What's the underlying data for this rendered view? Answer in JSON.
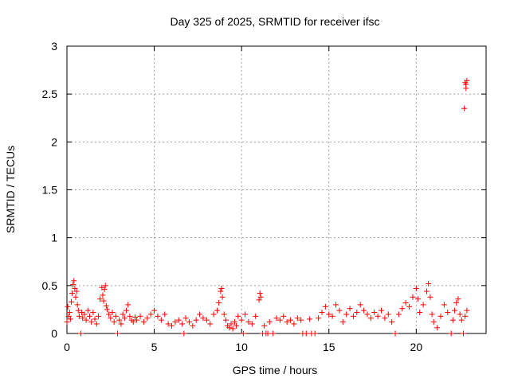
{
  "chart_data": {
    "type": "scatter",
    "title": "Day 325 of 2025, SRMTID for receiver ifsc",
    "xlabel": "GPS time / hours",
    "ylabel": "SRMTID / TECUs",
    "xlim": [
      0,
      24
    ],
    "ylim": [
      0,
      3
    ],
    "x_ticks": [
      0,
      5,
      10,
      15,
      20
    ],
    "y_ticks": [
      0,
      0.5,
      1,
      1.5,
      2,
      2.5,
      3
    ],
    "x_tick_labels": [
      "0",
      "5",
      "10",
      "15",
      "20"
    ],
    "y_tick_labels": [
      "0",
      "0.5",
      "1",
      "1.5",
      "2",
      "2.5",
      "3"
    ],
    "grid": true,
    "legend": "none",
    "marker": "+",
    "series": [
      {
        "color": "#ff0000",
        "points": [
          [
            0.0,
            0.12
          ],
          [
            0.05,
            0.28
          ],
          [
            0.1,
            0.18
          ],
          [
            0.15,
            0.22
          ],
          [
            0.2,
            0.15
          ],
          [
            0.25,
            0.33
          ],
          [
            0.3,
            0.42
          ],
          [
            0.35,
            0.51
          ],
          [
            0.4,
            0.55
          ],
          [
            0.45,
            0.47
          ],
          [
            0.5,
            0.38
          ],
          [
            0.55,
            0.44
          ],
          [
            0.6,
            0.3
          ],
          [
            0.65,
            0.24
          ],
          [
            0.7,
            0.18
          ],
          [
            0.8,
            0.0
          ],
          [
            0.85,
            0.22
          ],
          [
            0.9,
            0.16
          ],
          [
            1.0,
            0.2
          ],
          [
            1.1,
            0.14
          ],
          [
            1.2,
            0.24
          ],
          [
            1.3,
            0.18
          ],
          [
            1.4,
            0.12
          ],
          [
            1.5,
            0.22
          ],
          [
            1.6,
            0.15
          ],
          [
            1.7,
            0.1
          ],
          [
            1.8,
            0.18
          ],
          [
            1.9,
            0.36
          ],
          [
            2.0,
            0.48
          ],
          [
            2.05,
            0.4
          ],
          [
            2.1,
            0.34
          ],
          [
            2.15,
            0.46
          ],
          [
            2.2,
            0.5
          ],
          [
            2.25,
            0.29
          ],
          [
            2.3,
            0.25
          ],
          [
            2.4,
            0.2
          ],
          [
            2.5,
            0.16
          ],
          [
            2.6,
            0.22
          ],
          [
            2.7,
            0.12
          ],
          [
            2.8,
            0.18
          ],
          [
            2.9,
            0.0
          ],
          [
            3.0,
            0.14
          ],
          [
            3.1,
            0.1
          ],
          [
            3.2,
            0.2
          ],
          [
            3.3,
            0.16
          ],
          [
            3.4,
            0.24
          ],
          [
            3.5,
            0.3
          ],
          [
            3.6,
            0.18
          ],
          [
            3.7,
            0.14
          ],
          [
            3.8,
            0.12
          ],
          [
            3.9,
            0.17
          ],
          [
            4.0,
            0.14
          ],
          [
            4.2,
            0.18
          ],
          [
            4.4,
            0.12
          ],
          [
            4.6,
            0.16
          ],
          [
            4.8,
            0.2
          ],
          [
            5.0,
            0.24
          ],
          [
            5.2,
            0.18
          ],
          [
            5.4,
            0.14
          ],
          [
            5.6,
            0.2
          ],
          [
            5.8,
            0.1
          ],
          [
            6.0,
            0.08
          ],
          [
            6.2,
            0.12
          ],
          [
            6.4,
            0.14
          ],
          [
            6.6,
            0.1
          ],
          [
            6.7,
            0.0
          ],
          [
            6.8,
            0.16
          ],
          [
            7.0,
            0.12
          ],
          [
            7.2,
            0.08
          ],
          [
            7.4,
            0.14
          ],
          [
            7.6,
            0.2
          ],
          [
            7.8,
            0.16
          ],
          [
            8.0,
            0.14
          ],
          [
            8.2,
            0.1
          ],
          [
            8.4,
            0.2
          ],
          [
            8.6,
            0.24
          ],
          [
            8.7,
            0.32
          ],
          [
            8.8,
            0.44
          ],
          [
            8.85,
            0.47
          ],
          [
            8.9,
            0.38
          ],
          [
            9.0,
            0.2
          ],
          [
            9.1,
            0.14
          ],
          [
            9.2,
            0.08
          ],
          [
            9.3,
            0.06
          ],
          [
            9.4,
            0.1
          ],
          [
            9.5,
            0.05
          ],
          [
            9.6,
            0.12
          ],
          [
            9.7,
            0.08
          ],
          [
            9.8,
            0.18
          ],
          [
            10.0,
            0.14
          ],
          [
            10.1,
            0.0
          ],
          [
            10.2,
            0.2
          ],
          [
            10.4,
            0.12
          ],
          [
            10.6,
            0.1
          ],
          [
            10.8,
            0.18
          ],
          [
            11.0,
            0.35
          ],
          [
            11.05,
            0.42
          ],
          [
            11.1,
            0.38
          ],
          [
            11.2,
            0.0
          ],
          [
            11.3,
            0.08
          ],
          [
            11.4,
            0.0
          ],
          [
            11.5,
            0.0
          ],
          [
            11.6,
            0.12
          ],
          [
            11.8,
            0.0
          ],
          [
            12.0,
            0.16
          ],
          [
            12.2,
            0.14
          ],
          [
            12.4,
            0.18
          ],
          [
            12.6,
            0.12
          ],
          [
            12.8,
            0.14
          ],
          [
            13.0,
            0.1
          ],
          [
            13.2,
            0.16
          ],
          [
            13.4,
            0.14
          ],
          [
            13.5,
            0.0
          ],
          [
            13.7,
            0.0
          ],
          [
            13.9,
            0.15
          ],
          [
            14.0,
            0.0
          ],
          [
            14.2,
            0.0
          ],
          [
            14.4,
            0.16
          ],
          [
            14.6,
            0.22
          ],
          [
            14.8,
            0.28
          ],
          [
            15.0,
            0.2
          ],
          [
            15.2,
            0.18
          ],
          [
            15.4,
            0.3
          ],
          [
            15.6,
            0.24
          ],
          [
            15.8,
            0.12
          ],
          [
            16.0,
            0.2
          ],
          [
            16.2,
            0.26
          ],
          [
            16.4,
            0.18
          ],
          [
            16.6,
            0.22
          ],
          [
            16.8,
            0.3
          ],
          [
            17.0,
            0.24
          ],
          [
            17.2,
            0.2
          ],
          [
            17.4,
            0.16
          ],
          [
            17.6,
            0.22
          ],
          [
            17.8,
            0.18
          ],
          [
            18.0,
            0.24
          ],
          [
            18.2,
            0.16
          ],
          [
            18.4,
            0.2
          ],
          [
            18.6,
            0.12
          ],
          [
            18.8,
            0.0
          ],
          [
            19.0,
            0.2
          ],
          [
            19.2,
            0.26
          ],
          [
            19.4,
            0.32
          ],
          [
            19.6,
            0.28
          ],
          [
            19.8,
            0.38
          ],
          [
            20.0,
            0.47
          ],
          [
            20.1,
            0.36
          ],
          [
            20.2,
            0.22
          ],
          [
            20.4,
            0.3
          ],
          [
            20.6,
            0.44
          ],
          [
            20.7,
            0.52
          ],
          [
            20.8,
            0.38
          ],
          [
            20.9,
            0.2
          ],
          [
            21.0,
            0.12
          ],
          [
            21.2,
            0.06
          ],
          [
            21.4,
            0.18
          ],
          [
            21.6,
            0.3
          ],
          [
            21.8,
            0.22
          ],
          [
            22.0,
            0.0
          ],
          [
            22.1,
            0.14
          ],
          [
            22.2,
            0.24
          ],
          [
            22.3,
            0.32
          ],
          [
            22.4,
            0.36
          ],
          [
            22.5,
            0.2
          ],
          [
            22.6,
            0.14
          ],
          [
            22.7,
            0.0
          ],
          [
            22.75,
            2.35
          ],
          [
            22.8,
            2.62
          ],
          [
            22.85,
            2.6
          ],
          [
            22.9,
            2.64
          ],
          [
            22.85,
            2.56
          ],
          [
            22.8,
            0.18
          ],
          [
            22.9,
            0.24
          ]
        ]
      }
    ]
  }
}
